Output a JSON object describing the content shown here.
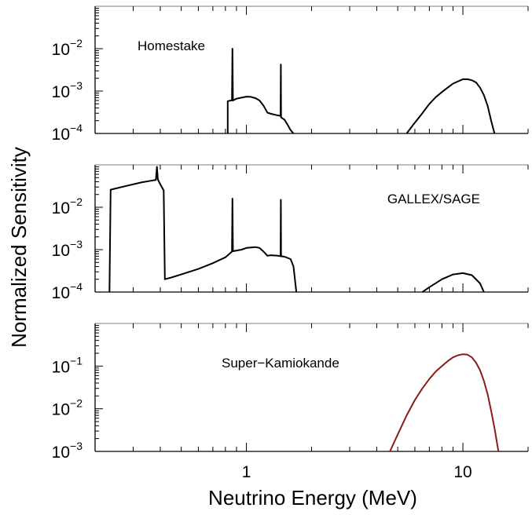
{
  "chart_data": {
    "type": "line",
    "xlabel": "Neutrino Energy (MeV)",
    "ylabel": "Normalized Sensitivity",
    "x_scale": "log",
    "y_scale": "log",
    "x_tick_labels": [
      "1",
      "10"
    ],
    "xlim": [
      0.2,
      20
    ],
    "grid": false,
    "panels": [
      {
        "label": "Homestake",
        "ylim": [
          0.0001,
          0.1
        ],
        "y_tick_labels": [
          {
            "base": "10",
            "exp": "−2"
          },
          {
            "base": "10",
            "exp": "−3"
          },
          {
            "base": "10",
            "exp": "−4"
          }
        ],
        "series": [
          {
            "color": "#000000",
            "segments": [
              [
                [
                  0.82,
                  0.0001
                ],
                [
                  0.82,
                  0.00058
                ],
                [
                  0.85,
                  0.0006
                ],
                [
                  0.858,
                  0.0006
                ],
                [
                  0.862,
                  0.01
                ],
                [
                  0.866,
                  0.0006
                ],
                [
                  0.9,
                  0.00066
                ],
                [
                  1.0,
                  0.00074
                ],
                [
                  1.05,
                  0.00073
                ],
                [
                  1.1,
                  0.00068
                ],
                [
                  1.15,
                  0.0006
                ],
                [
                  1.2,
                  0.00045
                ],
                [
                  1.25,
                  0.00031
                ],
                [
                  1.3,
                  0.00029
                ],
                [
                  1.38,
                  0.00027
                ],
                [
                  1.438,
                  0.00026
                ],
                [
                  1.442,
                  0.0042
                ],
                [
                  1.446,
                  0.00024
                ],
                [
                  1.5,
                  0.00021
                ],
                [
                  1.55,
                  0.00016
                ],
                [
                  1.6,
                  0.00012
                ],
                [
                  1.65,
                  0.0001
                ]
              ],
              [
                [
                  5.5,
                  0.0001
                ],
                [
                  6,
                  0.00018
                ],
                [
                  6.5,
                  0.0003
                ],
                [
                  7,
                  0.0005
                ],
                [
                  7.5,
                  0.00072
                ],
                [
                  8,
                  0.00095
                ],
                [
                  8.5,
                  0.0012
                ],
                [
                  9,
                  0.0015
                ],
                [
                  9.5,
                  0.0017
                ],
                [
                  10,
                  0.0019
                ],
                [
                  10.5,
                  0.0019
                ],
                [
                  11,
                  0.0018
                ],
                [
                  11.5,
                  0.0016
                ],
                [
                  12,
                  0.0012
                ],
                [
                  12.5,
                  0.0008
                ],
                [
                  13,
                  0.00045
                ],
                [
                  13.5,
                  0.0002
                ],
                [
                  14,
                  0.0001
                ]
              ]
            ]
          }
        ]
      },
      {
        "label": "GALLEX/SAGE",
        "ylim": [
          0.0001,
          0.1
        ],
        "y_tick_labels": [
          {
            "base": "10",
            "exp": "−2"
          },
          {
            "base": "10",
            "exp": "−3"
          },
          {
            "base": "10",
            "exp": "−4"
          }
        ],
        "series": [
          {
            "color": "#000000",
            "segments": [
              [
                [
                  0.233,
                  0.0001
                ],
                [
                  0.236,
                  0.026
                ],
                [
                  0.28,
                  0.032
                ],
                [
                  0.33,
                  0.039
                ],
                [
                  0.37,
                  0.043
                ],
                [
                  0.382,
                  0.044
                ],
                [
                  0.386,
                  0.09
                ],
                [
                  0.39,
                  0.045
                ],
                [
                  0.4,
                  0.035
                ],
                [
                  0.415,
                  0.025
                ],
                [
                  0.42,
                  0.0002
                ],
                [
                  0.45,
                  0.00022
                ],
                [
                  0.5,
                  0.00026
                ],
                [
                  0.6,
                  0.00035
                ],
                [
                  0.7,
                  0.00048
                ],
                [
                  0.8,
                  0.00066
                ],
                [
                  0.858,
                  0.0009
                ],
                [
                  0.862,
                  0.016
                ],
                [
                  0.866,
                  0.00092
                ],
                [
                  0.95,
                  0.001
                ],
                [
                  1.0,
                  0.0011
                ],
                [
                  1.1,
                  0.00115
                ],
                [
                  1.15,
                  0.0011
                ],
                [
                  1.2,
                  0.0009
                ],
                [
                  1.25,
                  0.00072
                ],
                [
                  1.3,
                  0.00074
                ],
                [
                  1.4,
                  0.00072
                ],
                [
                  1.438,
                  0.0007
                ],
                [
                  1.442,
                  0.015
                ],
                [
                  1.446,
                  0.0007
                ],
                [
                  1.5,
                  0.00068
                ],
                [
                  1.6,
                  0.0006
                ],
                [
                  1.65,
                  0.0004
                ],
                [
                  1.7,
                  0.0001
                ]
              ],
              [
                [
                  6.5,
                  0.0001
                ],
                [
                  7,
                  0.00013
                ],
                [
                  8,
                  0.0002
                ],
                [
                  9,
                  0.00026
                ],
                [
                  10,
                  0.00028
                ],
                [
                  11,
                  0.00025
                ],
                [
                  12,
                  0.00016
                ],
                [
                  12.5,
                  0.0001
                ]
              ]
            ]
          }
        ]
      },
      {
        "label": "Super−Kamiokande",
        "ylim": [
          0.001,
          1
        ],
        "y_tick_labels": [
          {
            "base": "10",
            "exp": "−1"
          },
          {
            "base": "10",
            "exp": "−2"
          },
          {
            "base": "10",
            "exp": "−3"
          }
        ],
        "series": [
          {
            "color": "#8b1a1a",
            "segments": [
              [
                [
                  4.6,
                  0.001
                ],
                [
                  5,
                  0.0025
                ],
                [
                  5.5,
                  0.007
                ],
                [
                  6,
                  0.016
                ],
                [
                  6.5,
                  0.03
                ],
                [
                  7,
                  0.05
                ],
                [
                  7.5,
                  0.075
                ],
                [
                  8,
                  0.1
                ],
                [
                  8.5,
                  0.13
                ],
                [
                  9,
                  0.16
                ],
                [
                  9.5,
                  0.18
                ],
                [
                  10,
                  0.19
                ],
                [
                  10.5,
                  0.185
                ],
                [
                  11,
                  0.16
                ],
                [
                  11.5,
                  0.12
                ],
                [
                  12,
                  0.08
                ],
                [
                  12.5,
                  0.045
                ],
                [
                  13,
                  0.022
                ],
                [
                  13.5,
                  0.009
                ],
                [
                  14,
                  0.0035
                ],
                [
                  14.6,
                  0.001
                ]
              ]
            ]
          }
        ]
      }
    ]
  }
}
